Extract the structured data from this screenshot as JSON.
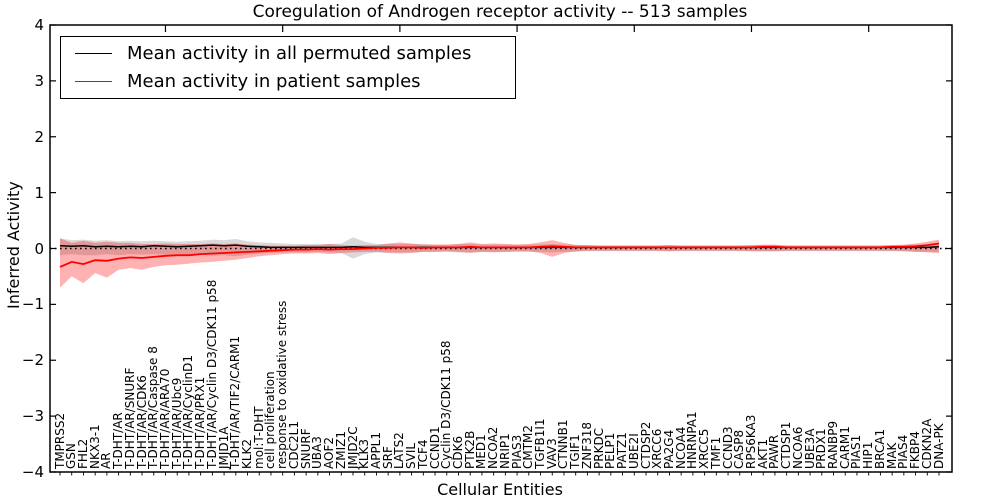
{
  "title": "Coregulation of Androgen receptor activity -- 513 samples",
  "xlabel": "Cellular Entities",
  "ylabel": "Inferred Activity",
  "legend": [
    {
      "label": "Mean activity in all permuted samples",
      "color": "#000000"
    },
    {
      "label": "Mean activity in patient samples",
      "color": "#ff0000"
    }
  ],
  "colors": {
    "permuted_line": "#000000",
    "patient_line": "#ff0000",
    "permuted_band": "rgba(128,128,128,0.30)",
    "patient_band": "rgba(255,0,0,0.30)",
    "axis": "#000000",
    "background": "#ffffff"
  },
  "chart_data": {
    "type": "line",
    "title": "Coregulation of Androgen receptor activity -- 513 samples",
    "xlabel": "Cellular Entities",
    "ylabel": "Inferred Activity",
    "ylim": [
      -4,
      4
    ],
    "yticks": [
      4,
      3,
      2,
      1,
      0,
      -1,
      -2,
      -3,
      -4
    ],
    "zero_line": true,
    "legend_position": "upper left",
    "grid": false,
    "categories": [
      "TMPRSS2",
      "GSN",
      "FHL2",
      "NKX3-1",
      "AR",
      "T-DHT/AR",
      "T-DHT/AR/SNURF",
      "T-DHT/AR/CDK6",
      "T-DHT/AR/Caspase 8",
      "T-DHT/AR/ARA70",
      "T-DHT/AR/Ubc9",
      "T-DHT/AR/CyclinD1",
      "T-DHT/AR/PRX1",
      "T-DHT/AR/Cyclin D3/CDK11 p58",
      "JMJD1A",
      "T-DHT/AR/TIF2/CARM1",
      "KLK2",
      "mol:T-DHT",
      "cell proliferation",
      "response to oxidative stress",
      "CDC2L1",
      "SNURF",
      "UBA3",
      "AOF2",
      "ZMIZ1",
      "JMJD2C",
      "KLK3",
      "APPL1",
      "SRF",
      "LATS2",
      "SVIL",
      "TCF4",
      "CCND1",
      "Cyclin D3/CDK11 p58",
      "CDK6",
      "PTK2B",
      "MED1",
      "NCOA2",
      "NRIP1",
      "PIAS3",
      "CMTM2",
      "TGFB1I1",
      "VAV3",
      "CTNNB1",
      "TGIF1",
      "ZNF318",
      "PRKDC",
      "PELP1",
      "PATZ1",
      "UBE2I",
      "CTDSP2",
      "XRCC6",
      "PA2G4",
      "NCOA4",
      "HNRNPA1",
      "XRCC5",
      "TMF1",
      "CCND3",
      "CASP8",
      "RPS6KA3",
      "AKT1",
      "PAWR",
      "CTDSP1",
      "NCOA6",
      "UBE3A",
      "PRDX1",
      "RANBP9",
      "CARM1",
      "PIAS1",
      "HIP1",
      "BRCA1",
      "MAK",
      "PIAS4",
      "FKBP4",
      "CDKN2A",
      "DNA-PK"
    ],
    "series": [
      {
        "name": "Mean activity in all permuted samples",
        "color": "#000000",
        "line_width": 1.5,
        "band_color": "rgba(128,128,128,0.30)",
        "values": [
          0.05,
          0.04,
          0.05,
          0.03,
          0.04,
          0.03,
          0.04,
          0.03,
          0.05,
          0.04,
          0.03,
          0.04,
          0.05,
          0.06,
          0.05,
          0.06,
          0.04,
          0.03,
          0.02,
          0.02,
          0.02,
          0.02,
          0.02,
          0.02,
          0.02,
          0.03,
          0.02,
          0.02,
          0.02,
          0.02,
          0.02,
          0.02,
          0.02,
          0.02,
          0.02,
          0.02,
          0.02,
          0.02,
          0.02,
          0.02,
          0.02,
          0.02,
          0.02,
          0.02,
          0.02,
          0.02,
          0.02,
          0.02,
          0.02,
          0.02,
          0.02,
          0.02,
          0.02,
          0.02,
          0.02,
          0.02,
          0.02,
          0.02,
          0.02,
          0.02,
          0.02,
          0.02,
          0.02,
          0.02,
          0.02,
          0.02,
          0.02,
          0.02,
          0.02,
          0.02,
          0.02,
          0.02,
          0.02,
          0.02,
          0.02,
          0.03
        ],
        "band_upper": [
          0.18,
          0.15,
          0.16,
          0.14,
          0.15,
          0.13,
          0.14,
          0.13,
          0.14,
          0.13,
          0.12,
          0.13,
          0.14,
          0.16,
          0.15,
          0.17,
          0.13,
          0.11,
          0.1,
          0.09,
          0.08,
          0.08,
          0.08,
          0.08,
          0.09,
          0.2,
          0.12,
          0.08,
          0.08,
          0.08,
          0.08,
          0.08,
          0.07,
          0.07,
          0.08,
          0.08,
          0.07,
          0.07,
          0.07,
          0.07,
          0.07,
          0.07,
          0.08,
          0.07,
          0.07,
          0.06,
          0.06,
          0.06,
          0.06,
          0.06,
          0.06,
          0.06,
          0.06,
          0.06,
          0.06,
          0.06,
          0.06,
          0.06,
          0.06,
          0.06,
          0.06,
          0.06,
          0.06,
          0.06,
          0.06,
          0.06,
          0.06,
          0.06,
          0.06,
          0.06,
          0.06,
          0.06,
          0.06,
          0.07,
          0.07,
          0.08
        ],
        "band_lower": [
          -0.12,
          -0.1,
          -0.12,
          -0.12,
          -0.1,
          -0.12,
          -0.1,
          -0.11,
          -0.1,
          -0.11,
          -0.1,
          -0.1,
          -0.11,
          -0.13,
          -0.12,
          -0.14,
          -0.11,
          -0.09,
          -0.08,
          -0.07,
          -0.07,
          -0.07,
          -0.06,
          -0.07,
          -0.08,
          -0.18,
          -0.1,
          -0.07,
          -0.07,
          -0.07,
          -0.07,
          -0.06,
          -0.06,
          -0.06,
          -0.07,
          -0.07,
          -0.06,
          -0.06,
          -0.06,
          -0.06,
          -0.06,
          -0.06,
          -0.07,
          -0.06,
          -0.06,
          -0.05,
          -0.05,
          -0.05,
          -0.05,
          -0.05,
          -0.05,
          -0.05,
          -0.05,
          -0.05,
          -0.05,
          -0.05,
          -0.05,
          -0.05,
          -0.05,
          -0.05,
          -0.05,
          -0.05,
          -0.05,
          -0.05,
          -0.05,
          -0.05,
          -0.05,
          -0.05,
          -0.05,
          -0.05,
          -0.05,
          -0.05,
          -0.05,
          -0.06,
          -0.06,
          -0.06
        ]
      },
      {
        "name": "Mean activity in patient samples",
        "color": "#ff0000",
        "line_width": 1.8,
        "band_color": "rgba(255,0,0,0.30)",
        "values": [
          -0.33,
          -0.24,
          -0.28,
          -0.21,
          -0.22,
          -0.18,
          -0.16,
          -0.17,
          -0.15,
          -0.13,
          -0.12,
          -0.12,
          -0.1,
          -0.09,
          -0.08,
          -0.07,
          -0.06,
          -0.05,
          -0.04,
          -0.03,
          -0.02,
          -0.02,
          -0.01,
          -0.02,
          -0.01,
          -0.01,
          0.0,
          0.01,
          0.01,
          0.02,
          0.02,
          0.01,
          0.02,
          0.02,
          0.02,
          0.03,
          0.02,
          0.02,
          0.02,
          0.02,
          0.02,
          0.03,
          0.04,
          0.03,
          0.02,
          0.02,
          0.02,
          0.02,
          0.02,
          0.02,
          0.02,
          0.02,
          0.02,
          0.02,
          0.02,
          0.02,
          0.02,
          0.02,
          0.02,
          0.02,
          0.03,
          0.03,
          0.02,
          0.02,
          0.02,
          0.02,
          0.02,
          0.02,
          0.02,
          0.02,
          0.02,
          0.03,
          0.03,
          0.04,
          0.06,
          0.09
        ],
        "band_upper": [
          0.18,
          0.1,
          0.14,
          0.1,
          0.12,
          0.1,
          0.1,
          0.08,
          0.08,
          0.09,
          0.08,
          0.08,
          0.08,
          0.09,
          0.08,
          0.09,
          0.07,
          0.06,
          0.05,
          0.05,
          0.05,
          0.06,
          0.06,
          0.08,
          0.06,
          0.05,
          0.06,
          0.06,
          0.09,
          0.11,
          0.09,
          0.07,
          0.07,
          0.07,
          0.08,
          0.11,
          0.08,
          0.09,
          0.08,
          0.07,
          0.08,
          0.11,
          0.15,
          0.1,
          0.06,
          0.06,
          0.05,
          0.05,
          0.05,
          0.05,
          0.05,
          0.05,
          0.06,
          0.05,
          0.05,
          0.05,
          0.05,
          0.05,
          0.05,
          0.06,
          0.07,
          0.07,
          0.05,
          0.05,
          0.05,
          0.05,
          0.05,
          0.05,
          0.05,
          0.05,
          0.05,
          0.06,
          0.07,
          0.09,
          0.12,
          0.16
        ],
        "band_lower": [
          -0.7,
          -0.5,
          -0.62,
          -0.44,
          -0.52,
          -0.38,
          -0.35,
          -0.38,
          -0.33,
          -0.3,
          -0.29,
          -0.27,
          -0.25,
          -0.24,
          -0.22,
          -0.2,
          -0.17,
          -0.14,
          -0.12,
          -0.1,
          -0.09,
          -0.09,
          -0.08,
          -0.1,
          -0.08,
          -0.07,
          -0.06,
          -0.06,
          -0.08,
          -0.09,
          -0.08,
          -0.06,
          -0.06,
          -0.05,
          -0.06,
          -0.08,
          -0.06,
          -0.07,
          -0.06,
          -0.05,
          -0.05,
          -0.08,
          -0.15,
          -0.08,
          -0.05,
          -0.04,
          -0.04,
          -0.04,
          -0.04,
          -0.04,
          -0.04,
          -0.04,
          -0.05,
          -0.04,
          -0.04,
          -0.04,
          -0.04,
          -0.04,
          -0.04,
          -0.05,
          -0.05,
          -0.05,
          -0.04,
          -0.04,
          -0.04,
          -0.04,
          -0.04,
          -0.04,
          -0.04,
          -0.04,
          -0.04,
          -0.04,
          -0.05,
          -0.06,
          -0.07,
          -0.08
        ]
      }
    ]
  }
}
